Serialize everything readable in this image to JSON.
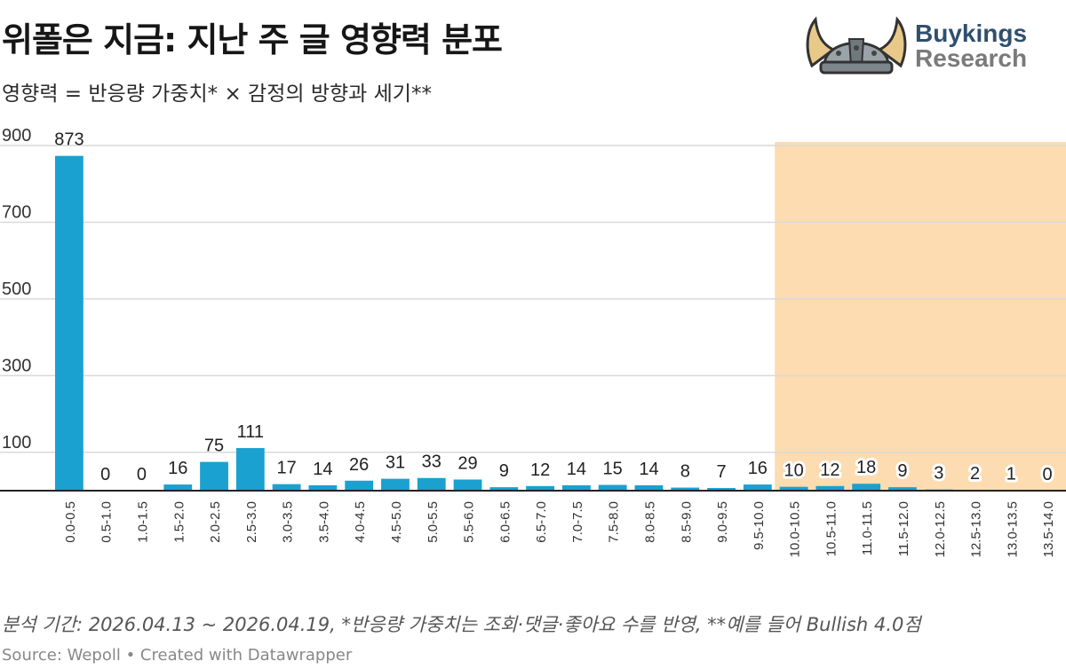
{
  "header": {
    "title": "위폴은 지금: 지난 주 글 영향력 분포",
    "subtitle": "영향력 =  반응량 가중치* × 감정의 방향과 세기**"
  },
  "logo": {
    "line1": "Buykings",
    "line2": "Research",
    "icon": "viking-helmet-icon"
  },
  "footer": {
    "note": "분석 기간: 2026.04.13 ~ 2026.04.19, *반응량 가중치는 조회·댓글·좋아요 수를 반영, **예를 들어 Bullish 4.0점",
    "source": "Source: Wepoll • Created with Datawrapper"
  },
  "colors": {
    "bar": "#1aa1cf",
    "highlight": "#fcdcb0",
    "grid": "#d9d9d9",
    "baseline": "#222222"
  },
  "chart_data": {
    "type": "bar",
    "categories": [
      "0.0-0.5",
      "0.5-1.0",
      "1.0-1.5",
      "1.5-2.0",
      "2.0-2.5",
      "2.5-3.0",
      "3.0-3.5",
      "3.5-4.0",
      "4.0-4.5",
      "4.5-5.0",
      "5.0-5.5",
      "5.5-6.0",
      "6.0-6.5",
      "6.5-7.0",
      "7.0-7.5",
      "7.5-8.0",
      "8.0-8.5",
      "8.5-9.0",
      "9.0-9.5",
      "9.5-10.0",
      "10.0-10.5",
      "10.5-11.0",
      "11.0-11.5",
      "11.5-12.0",
      "12.0-12.5",
      "12.5-13.0",
      "13.0-13.5",
      "13.5-14.0"
    ],
    "values": [
      873,
      0,
      0,
      16,
      75,
      111,
      17,
      14,
      26,
      31,
      33,
      29,
      9,
      12,
      14,
      15,
      14,
      8,
      7,
      16,
      10,
      12,
      18,
      9,
      3,
      2,
      1,
      0
    ],
    "yticks": [
      100,
      300,
      500,
      700,
      900
    ],
    "ylim": [
      0,
      900
    ],
    "highlight_range": [
      "10.0-10.5",
      "13.5-14.0"
    ],
    "grid": true
  }
}
